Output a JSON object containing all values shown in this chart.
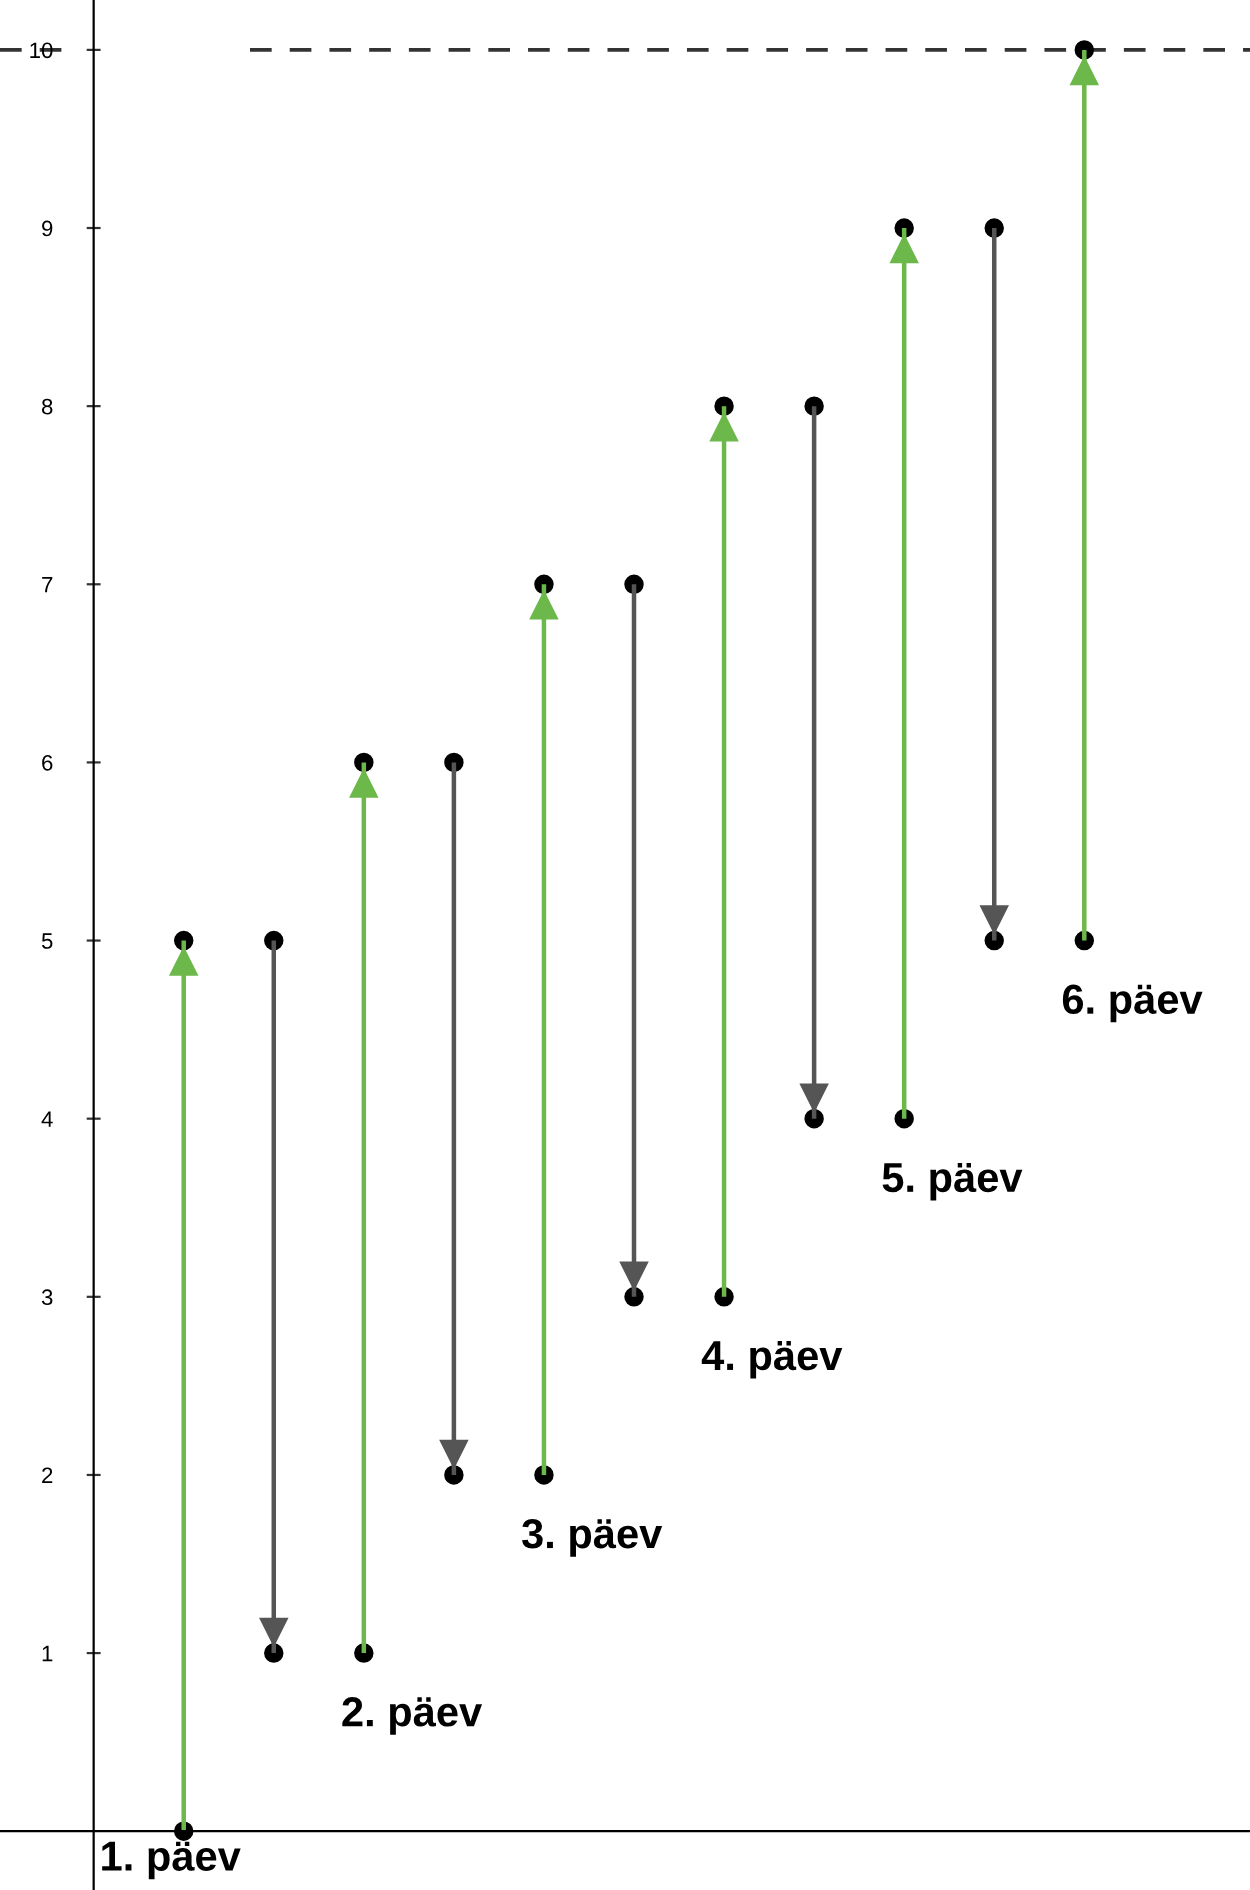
{
  "chart_data": {
    "type": "bar",
    "categories": [
      null,
      null,
      null,
      null,
      null,
      null,
      null,
      null,
      null,
      null,
      null
    ],
    "base": [
      0,
      5,
      1,
      6,
      2,
      7,
      3,
      8,
      4,
      9,
      5
    ],
    "values": [
      5,
      -4,
      5,
      -4,
      5,
      -4,
      5,
      -4,
      5,
      -4,
      5
    ],
    "colors": [
      "#6cb84a",
      "#555555",
      "#6cb84a",
      "#555555",
      "#6cb84a",
      "#555555",
      "#6cb84a",
      "#555555",
      "#6cb84a",
      "#555555",
      "#6cb84a"
    ],
    "ylim": [
      -0.33,
      10.28
    ],
    "yticks": [
      1,
      2,
      3,
      4,
      5,
      6,
      7,
      8,
      9,
      10
    ],
    "tick_labels": "y",
    "grid": false,
    "ref_lines": [
      {
        "axis": "y",
        "value": 10,
        "color": "#333333",
        "line_style": "dashed"
      }
    ],
    "annotations": [
      "1. päev",
      "2. päev",
      "3. päev",
      "4. päev",
      "5. päev",
      "6. päev"
    ]
  }
}
